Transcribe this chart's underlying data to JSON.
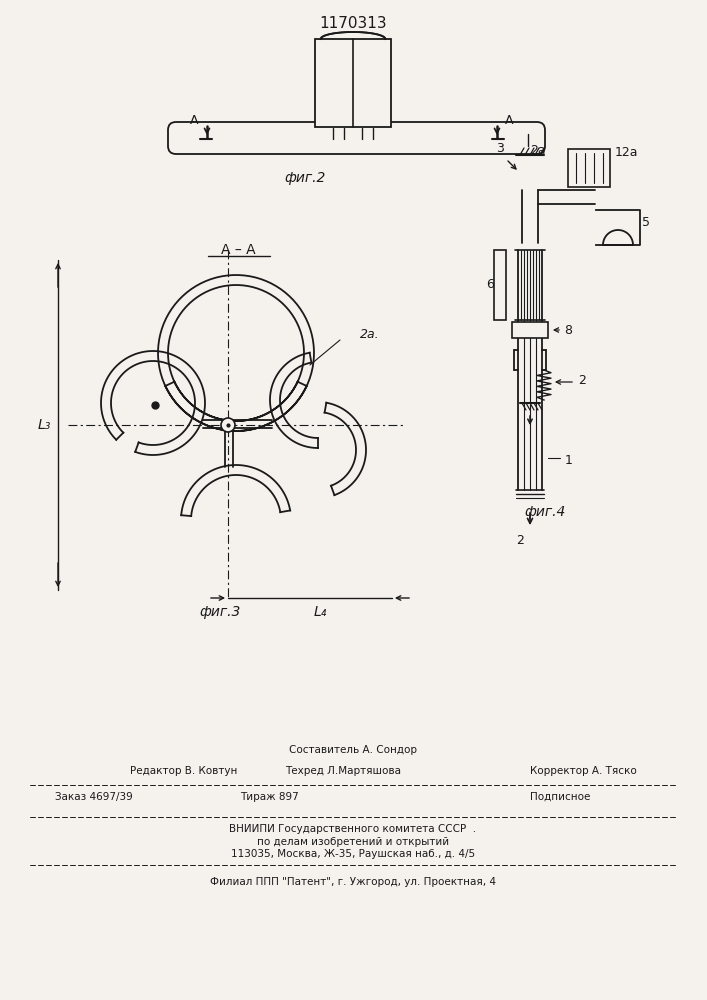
{
  "title": "1170313",
  "fig2_label": "фиг.2",
  "fig3_label": "фиг.3",
  "fig4_label": "фиг.4",
  "aa_label": "А – А",
  "label_2a": "2а",
  "label_2a_fig3": "2а.",
  "label_A": "А",
  "label_3": "3",
  "label_5": "5",
  "label_6": "6",
  "label_8": "8",
  "label_2": "2",
  "label_1": "1",
  "label_12a": "12а",
  "label_2_bottom": "2",
  "label_L3": "L₃",
  "label_L4": "L₄",
  "footer_line1": "Составитель А. Сондор",
  "footer_line2a": "Редактор В. Ковтун",
  "footer_line2b": "Техред Л.Мартяшова",
  "footer_line2c": "Корректор А. Тяско",
  "footer_line3a": "Заказ 4697/39",
  "footer_line3b": "Тираж 897",
  "footer_line3c": "Подписное",
  "footer_line4": "ВНИИПИ Государственного комитета СССР  .",
  "footer_line5": "по делам изобретений и открытий",
  "footer_line6": "113035, Москва, Ж-35, Раушская наб., д. 4/5",
  "footer_line7": "Филиал ППП \"Патент\", г. Ужгород, ул. Проектная, 4",
  "bg_color": "#f5f2ee",
  "line_color": "#1a1a1a",
  "text_color": "#1a1a1a"
}
